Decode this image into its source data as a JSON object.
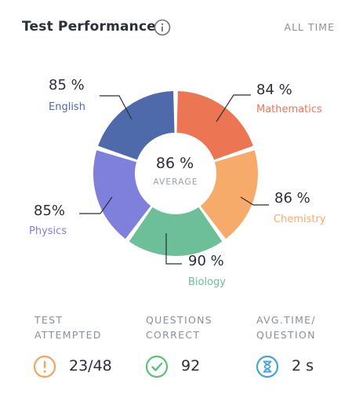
{
  "header": {
    "title": "Test Performance",
    "period": "ALL TIME"
  },
  "chart_data": {
    "type": "donut",
    "center": {
      "value": "86 %",
      "label": "AVERAGE"
    },
    "slices": [
      {
        "name": "Mathematics",
        "value_label": "84 %",
        "value": 84,
        "color": "#ec7554"
      },
      {
        "name": "Chemistry",
        "value_label": "86 %",
        "value": 86,
        "color": "#f7ab6a"
      },
      {
        "name": "Biology",
        "value_label": "90 %",
        "value": 90,
        "color": "#6cbf98"
      },
      {
        "name": "Physics",
        "value_label": "85%",
        "value": 85,
        "color": "#7f7fdc"
      },
      {
        "name": "English",
        "value_label": "85 %",
        "value": 85,
        "color": "#4f6aaa"
      }
    ]
  },
  "stats": [
    {
      "label_line1": "TEST",
      "label_line2": "ATTEMPTED",
      "value": "23/48",
      "icon": "exclamation-icon",
      "color": "#f5a460"
    },
    {
      "label_line1": "QUESTIONS",
      "label_line2": "CORRECT",
      "value": "92",
      "icon": "check-icon",
      "color": "#5cbf7a"
    },
    {
      "label_line1": "AVG.TIME/",
      "label_line2": "QUESTION",
      "value": "2 s",
      "icon": "hourglass-icon",
      "color": "#4aa3d6"
    }
  ]
}
